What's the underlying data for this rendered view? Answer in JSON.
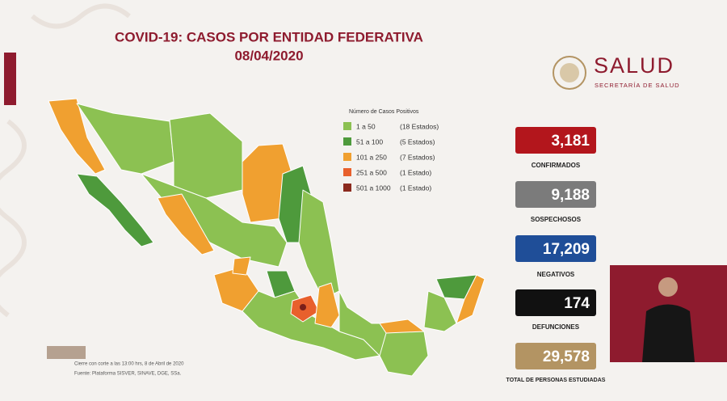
{
  "header": {
    "title": "COVID-19: CASOS POR ENTIDAD FEDERATIVA",
    "date": "08/04/2020"
  },
  "logo": {
    "name": "SALUD",
    "subtitle": "SECRETARÍA DE SALUD"
  },
  "legend": {
    "title": "Número de Casos Positivos",
    "items": [
      {
        "range": "1 a  50",
        "states": "(18 Estados)"
      },
      {
        "range": "51 a  100",
        "states": "(5 Estados)"
      },
      {
        "range": "101 a  250",
        "states": "(7 Estados)"
      },
      {
        "range": "251 a  500",
        "states": "(1 Estado)"
      },
      {
        "range": "501 a 1000",
        "states": "(1 Estado)"
      }
    ]
  },
  "stats": [
    {
      "value": "3,181",
      "label": "CONFIRMADOS"
    },
    {
      "value": "9,188",
      "label": "SOSPECHOSOS"
    },
    {
      "value": "17,209",
      "label": "NEGATIVOS"
    },
    {
      "value": "174",
      "label": "DEFUNCIONES"
    },
    {
      "value": "29,578",
      "label": "TOTAL DE PERSONAS ESTUDIADAS"
    }
  ],
  "footer": {
    "cutoff": "Cierre con corte a las 13:00 hrs, 8 de Abril de 2020",
    "source": "Fuente: Plataforma SISVER, SINAVE, DGE, SSa."
  }
}
